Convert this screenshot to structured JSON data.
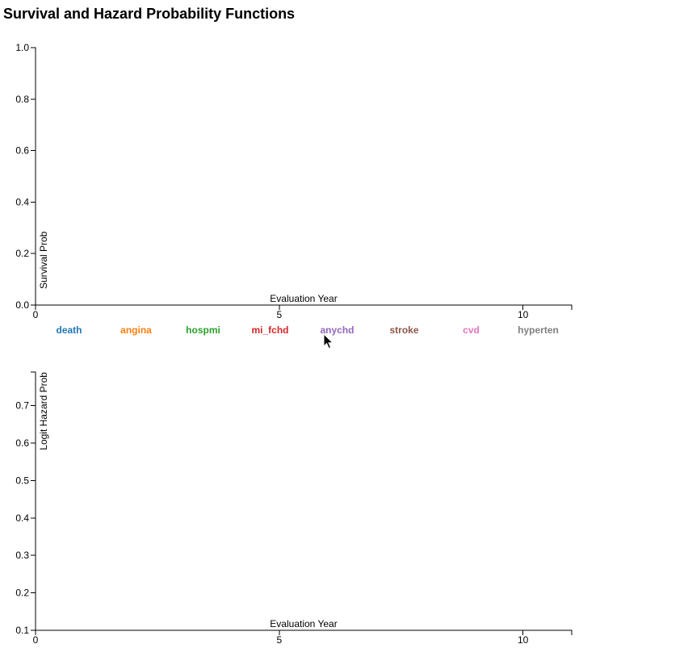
{
  "title": "Survival and Hazard Probability Functions",
  "legend": [
    {
      "label": "death",
      "color": "#1f77b4"
    },
    {
      "label": "angina",
      "color": "#ff7f0e"
    },
    {
      "label": "hospmi",
      "color": "#2ca02c"
    },
    {
      "label": "mi_fchd",
      "color": "#d62728"
    },
    {
      "label": "anychd",
      "color": "#9467bd"
    },
    {
      "label": "stroke",
      "color": "#8c564b"
    },
    {
      "label": "cvd",
      "color": "#e377c2"
    },
    {
      "label": "hyperten",
      "color": "#7f7f7f"
    }
  ],
  "cursor_icon": "arrow-pointer-icon",
  "chart_data": [
    {
      "type": "line",
      "xlabel": "Evaluation Year",
      "ylabel": "Survival Prob",
      "xlim": [
        0,
        11
      ],
      "ylim": [
        0,
        1
      ],
      "xticks": [
        "0",
        "5",
        "10"
      ],
      "xtick_values": [
        0,
        5,
        10
      ],
      "yticks": [
        "0.0",
        "0.2",
        "0.4",
        "0.6",
        "0.8",
        "1.0"
      ],
      "ytick_values": [
        0,
        0.2,
        0.4,
        0.6,
        0.8,
        1.0
      ],
      "series": [],
      "grid": false
    },
    {
      "type": "line",
      "xlabel": "Evaluation Year",
      "ylabel": "Logit Hazard Prob",
      "xlim": [
        0,
        11
      ],
      "ylim": [
        0.1,
        0.79
      ],
      "xticks": [
        "0",
        "5",
        "10"
      ],
      "xtick_values": [
        0,
        5,
        10
      ],
      "yticks": [
        "0.1",
        "0.2",
        "0.3",
        "0.4",
        "0.5",
        "0.6",
        "0.7"
      ],
      "ytick_values": [
        0.1,
        0.2,
        0.3,
        0.4,
        0.5,
        0.6,
        0.7
      ],
      "series": [],
      "grid": false
    }
  ]
}
